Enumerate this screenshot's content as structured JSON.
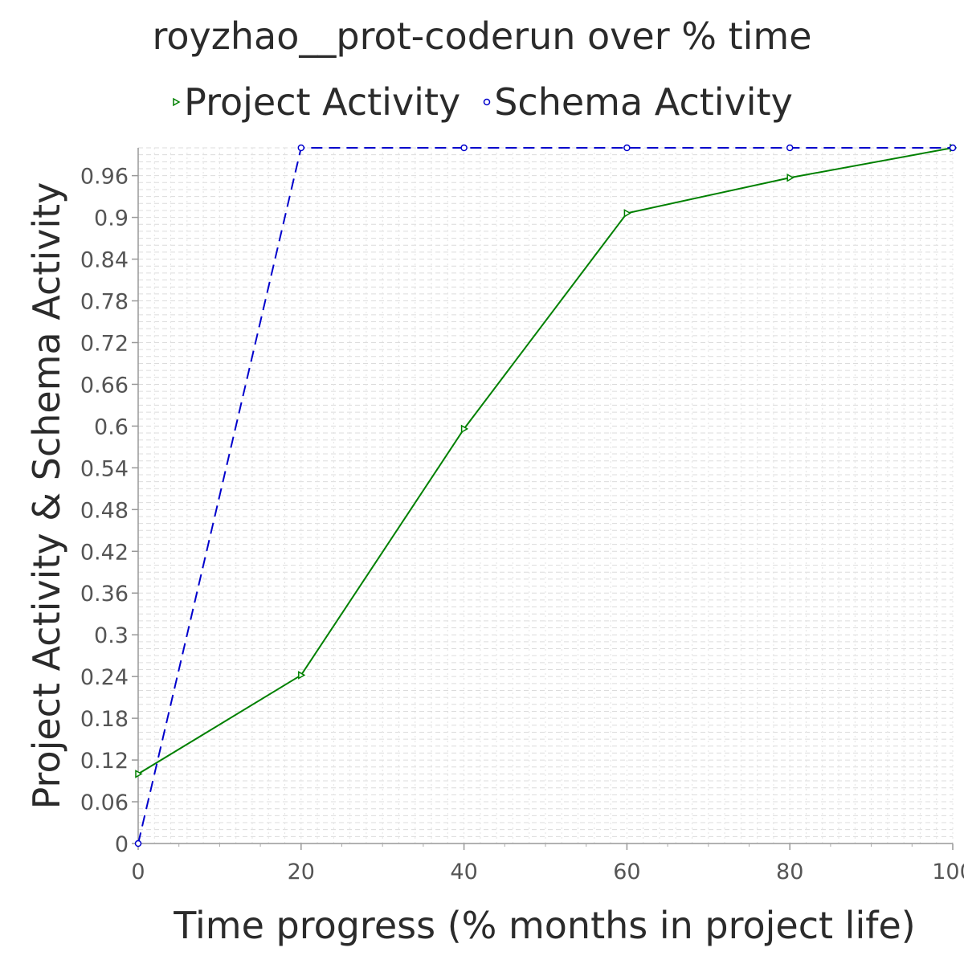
{
  "chart_data": {
    "type": "line",
    "title": "royzhao__prot-coderun over % time",
    "xlabel": "Time progress (% months in project life)",
    "ylabel": "Project Activity & Schema Activity",
    "xlim": [
      0,
      100
    ],
    "ylim": [
      0,
      1.0
    ],
    "x_ticks": [
      0,
      20,
      40,
      60,
      80,
      100
    ],
    "x_tick_labels": [
      "0",
      "20",
      "40",
      "60",
      "80",
      "100"
    ],
    "y_ticks": [
      0,
      0.06,
      0.12,
      0.18,
      0.24,
      0.3,
      0.36,
      0.42,
      0.48,
      0.54,
      0.6,
      0.66,
      0.72,
      0.78,
      0.84,
      0.9,
      0.96
    ],
    "y_tick_labels": [
      "0",
      "0.06",
      "0.12",
      "0.18",
      "0.24",
      "0.3",
      "0.36",
      "0.42",
      "0.48",
      "0.54",
      "0.6",
      "0.66",
      "0.72",
      "0.78",
      "0.84",
      "0.9",
      "0.96"
    ],
    "grid": true,
    "legend_position": "top",
    "series": [
      {
        "name": "Project Activity",
        "color": "#008000",
        "line_style": "solid",
        "marker": "triangle-right",
        "x": [
          0,
          20,
          40,
          60,
          80,
          100
        ],
        "y": [
          0.1,
          0.242,
          0.596,
          0.906,
          0.957,
          1.0
        ]
      },
      {
        "name": "Schema Activity",
        "color": "#0000cc",
        "line_style": "dashed",
        "marker": "circle",
        "x": [
          0,
          20,
          40,
          60,
          80,
          100
        ],
        "y": [
          0.0,
          1.0,
          1.0,
          1.0,
          1.0,
          1.0
        ]
      }
    ]
  }
}
